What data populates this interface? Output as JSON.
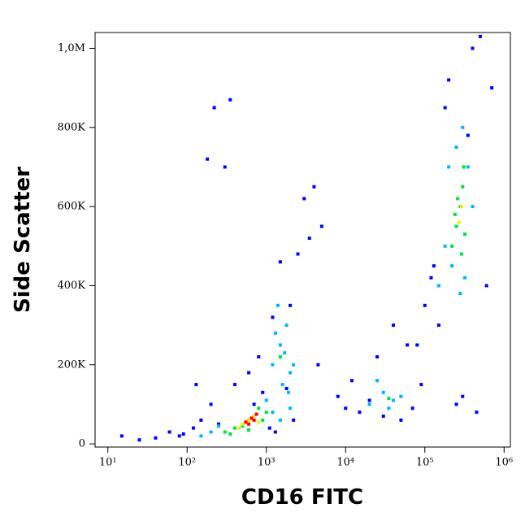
{
  "chart_data": {
    "type": "scatter",
    "xlabel": "CD16 FITC",
    "ylabel": "Side Scatter",
    "xscale": "log",
    "xlim": [
      6.9,
      1200000
    ],
    "ylim": [
      -8000,
      1040000
    ],
    "xticks": [
      {
        "value": 10,
        "label": "10¹"
      },
      {
        "value": 100,
        "label": "10²"
      },
      {
        "value": 1000,
        "label": "10³"
      },
      {
        "value": 10000,
        "label": "10⁴"
      },
      {
        "value": 100000,
        "label": "10⁵"
      },
      {
        "value": 1000000,
        "label": "10⁶"
      }
    ],
    "yticks": [
      0,
      {
        "value": 200000,
        "label": "200K"
      },
      {
        "value": 400000,
        "label": "400K"
      },
      {
        "value": 600000,
        "label": "600K"
      },
      {
        "value": 800000,
        "label": "800K"
      },
      {
        "value": 1000000,
        "label": "1,0M"
      }
    ],
    "series": [
      {
        "color": "#0000ff",
        "x": [
          15,
          25,
          40,
          60,
          80,
          120,
          150,
          200,
          250,
          300,
          180,
          350,
          220,
          130,
          90,
          1500,
          2500,
          3000,
          4000,
          5000,
          3500,
          4500,
          1200,
          2000,
          800,
          600,
          400,
          8000,
          10000,
          15000,
          20000,
          30000,
          50000,
          70000,
          90000,
          60000,
          40000,
          25000,
          12000,
          100000,
          120000,
          150000,
          80000,
          200000,
          500000,
          700000,
          400000,
          250000,
          300000,
          180000,
          350000,
          450000,
          600000,
          130000,
          1800,
          2200,
          900,
          700,
          1100,
          1300
        ],
        "values": [
          20000,
          10000,
          15000,
          30000,
          20000,
          40000,
          60000,
          100000,
          50000,
          700000,
          720000,
          870000,
          850000,
          150000,
          25000,
          460000,
          480000,
          620000,
          650000,
          550000,
          520000,
          200000,
          320000,
          350000,
          220000,
          180000,
          150000,
          120000,
          90000,
          80000,
          110000,
          70000,
          60000,
          90000,
          150000,
          250000,
          300000,
          220000,
          160000,
          350000,
          420000,
          300000,
          250000,
          920000,
          1030000,
          900000,
          1000000,
          100000,
          120000,
          850000,
          780000,
          80000,
          400000,
          450000,
          140000,
          60000,
          130000,
          100000,
          40000,
          30000
        ]
      },
      {
        "color": "#00b4ff",
        "x": [
          1200,
          1500,
          1800,
          2000,
          1400,
          1600,
          2200,
          1300,
          1700,
          1900,
          20000,
          30000,
          40000,
          25000,
          35000,
          50000,
          150000,
          180000,
          200000,
          250000,
          300000,
          350000,
          400000,
          220000,
          280000,
          320000,
          150,
          200,
          250,
          1200,
          1500,
          1000,
          2000
        ],
        "values": [
          200000,
          250000,
          300000,
          180000,
          350000,
          150000,
          200000,
          280000,
          230000,
          130000,
          100000,
          130000,
          110000,
          160000,
          90000,
          120000,
          400000,
          500000,
          700000,
          750000,
          800000,
          700000,
          600000,
          450000,
          380000,
          420000,
          20000,
          30000,
          45000,
          80000,
          60000,
          110000,
          90000
        ]
      },
      {
        "color": "#00e040",
        "x": [
          300,
          400,
          500,
          800,
          1000,
          350,
          600,
          900,
          220000,
          250000,
          280000,
          300000,
          320000,
          260000,
          290000,
          240000,
          310000,
          1500,
          35000
        ],
        "values": [
          30000,
          40000,
          45000,
          90000,
          80000,
          25000,
          35000,
          60000,
          500000,
          550000,
          600000,
          650000,
          530000,
          620000,
          480000,
          580000,
          700000,
          220000,
          115000
        ]
      },
      {
        "color": "#f0f000",
        "x": [
          500,
          600,
          700,
          800,
          450,
          270000,
          290000
        ],
        "values": [
          50000,
          60000,
          70000,
          55000,
          40000,
          560000,
          600000
        ]
      },
      {
        "color": "#ff0000",
        "x": [
          550,
          650,
          750,
          700,
          600
        ],
        "values": [
          55000,
          65000,
          75000,
          60000,
          50000
        ]
      }
    ]
  }
}
